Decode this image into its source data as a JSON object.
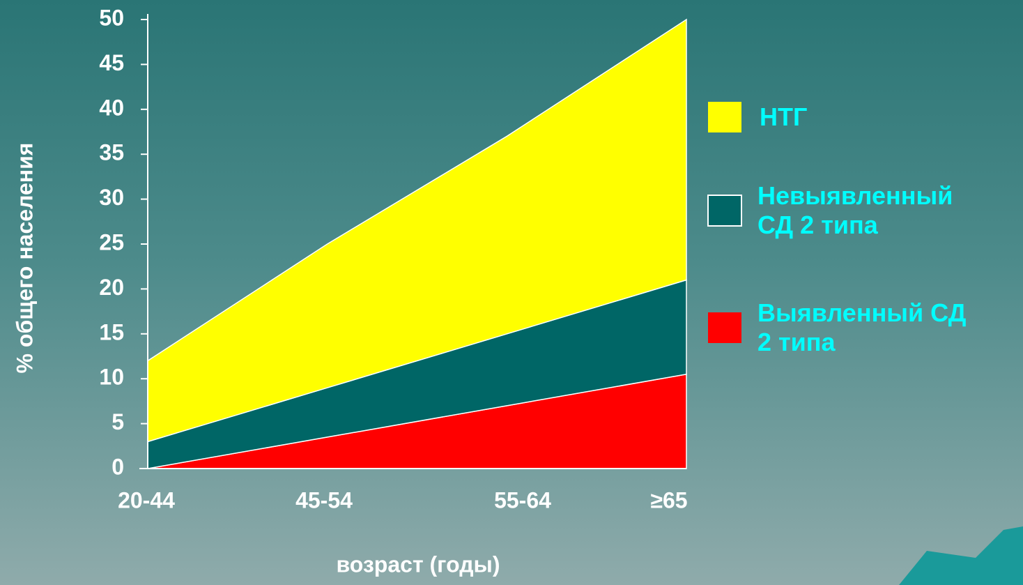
{
  "chart_data": {
    "type": "stacked-area",
    "categories": [
      "20-44",
      "45-54",
      "55-64",
      "≥65"
    ],
    "series": [
      {
        "name": "Выявленный СД 2 типа",
        "color": "#ff0000",
        "values": [
          0,
          3.5,
          7,
          10.5
        ]
      },
      {
        "name": "Невыявленный СД 2 типа",
        "color": "#006666",
        "values": [
          3,
          5.5,
          8,
          10.5
        ]
      },
      {
        "name": "НТГ",
        "color": "#ffff00",
        "values": [
          9,
          16,
          22,
          29
        ]
      }
    ],
    "ylim": [
      0,
      50
    ],
    "yticks": [
      0,
      5,
      10,
      15,
      20,
      25,
      30,
      35,
      40,
      45,
      50
    ],
    "y_label": "% общего населения",
    "x_label": "возраст (годы)"
  }
}
